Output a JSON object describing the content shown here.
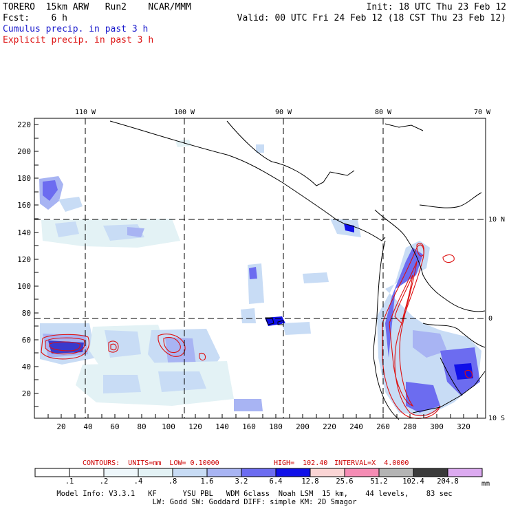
{
  "header": {
    "model": "TORERO  15km ARW   Run2    NCAR/MMM",
    "init": "Init: 18 UTC Thu 23 Feb 12",
    "fcst": "Fcst:    6 h",
    "valid": "Valid: 00 UTC Fri 24 Feb 12 (18 CST Thu 23 Feb 12)",
    "legend_cumulus": "Cumulus precip. in past 3 h",
    "legend_explicit": "Explicit precip. in past 3 h"
  },
  "map": {
    "top_lon_labels": [
      "110 W",
      "100 W",
      "90 W",
      "80 W",
      "70 W"
    ],
    "right_lat_labels": [
      "10 N",
      "0",
      "10 S"
    ],
    "y_ticks": [
      "220",
      "200",
      "180",
      "160",
      "140",
      "120",
      "100",
      "80",
      "60",
      "40",
      "20"
    ],
    "x_ticks": [
      "20",
      "40",
      "60",
      "80",
      "100",
      "120",
      "140",
      "160",
      "180",
      "200",
      "220",
      "240",
      "260",
      "280",
      "300",
      "320"
    ]
  },
  "contour_info": {
    "contours": "CONTOURS:  UNITS=mm  LOW= 0.10000",
    "high": "HIGH=  102.40",
    "interval": "INTERVAL=X  4.0000"
  },
  "colorbar": {
    "labels": [
      ".1",
      ".2",
      ".4",
      ".8",
      "1.6",
      "3.2",
      "6.4",
      "12.8",
      "25.6",
      "51.2",
      "102.4",
      "204.8"
    ],
    "unit": "mm",
    "colors": [
      "#ffffff",
      "#ffffff",
      "#eef7fb",
      "#e3f2f5",
      "#c8dcf5",
      "#a8b4f3",
      "#6c6cf0",
      "#1010e8",
      "#fbd5d5",
      "#f58cb4",
      "#b4b4b4",
      "#3a3a3a",
      "#dcaaf0"
    ]
  },
  "footer": {
    "line1": "Model Info: V3.3.1   KF      YSU PBL   WDM 6class  Noah LSM  15 km,    44 levels,    83 sec",
    "line2": "LW: Godd SW: Goddard DIFF: simple KM: 2D Smagor"
  }
}
